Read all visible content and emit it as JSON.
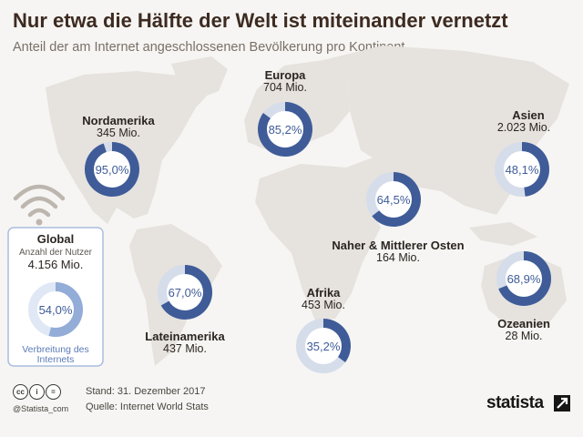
{
  "header": {
    "title": "Nur etwa die Hälfte der Welt ist miteinander vernetzt",
    "subtitle": "Anteil der am Internet angeschlossenen Bevölkerung pro Kontinent"
  },
  "chart_data": {
    "type": "donut",
    "value_unit": "%",
    "regions": [
      {
        "name": "Nordamerika",
        "users": "345 Mio.",
        "share": 95.0,
        "share_label": "95,0%"
      },
      {
        "name": "Europa",
        "users": "704 Mio.",
        "share": 85.2,
        "share_label": "85,2%"
      },
      {
        "name": "Asien",
        "users": "2.023 Mio.",
        "share": 48.1,
        "share_label": "48,1%"
      },
      {
        "name": "Naher & Mittlerer Osten",
        "users": "164 Mio.",
        "share": 64.5,
        "share_label": "64,5%"
      },
      {
        "name": "Lateinamerika",
        "users": "437 Mio.",
        "share": 67.0,
        "share_label": "67,0%"
      },
      {
        "name": "Afrika",
        "users": "453 Mio.",
        "share": 35.2,
        "share_label": "35,2%"
      },
      {
        "name": "Ozeanien",
        "users": "28 Mio.",
        "share": 68.9,
        "share_label": "68,9%"
      }
    ],
    "global": {
      "name": "Global",
      "users_label": "Anzahl der Nutzer",
      "users": "4.156 Mio.",
      "share": 54.0,
      "share_label": "54,0%",
      "share_caption": "Verbreitung des Internets"
    }
  },
  "colors": {
    "donut": "#3f5c98",
    "donut_track": "#d6ddea",
    "global_donut": "#93acd8",
    "global_track": "#e0e8f5",
    "map": "#e6e2de",
    "title": "#3d2b21"
  },
  "icons": [
    "wifi-icon",
    "cc-icon",
    "by-icon",
    "nd-icon",
    "statista-icon"
  ],
  "footer": {
    "date": "Stand: 31. Dezember 2017",
    "source": "Quelle: Internet World Stats",
    "handle": "@Statista_com",
    "brand": "statista",
    "license": [
      "cc",
      "by",
      "nd"
    ]
  }
}
